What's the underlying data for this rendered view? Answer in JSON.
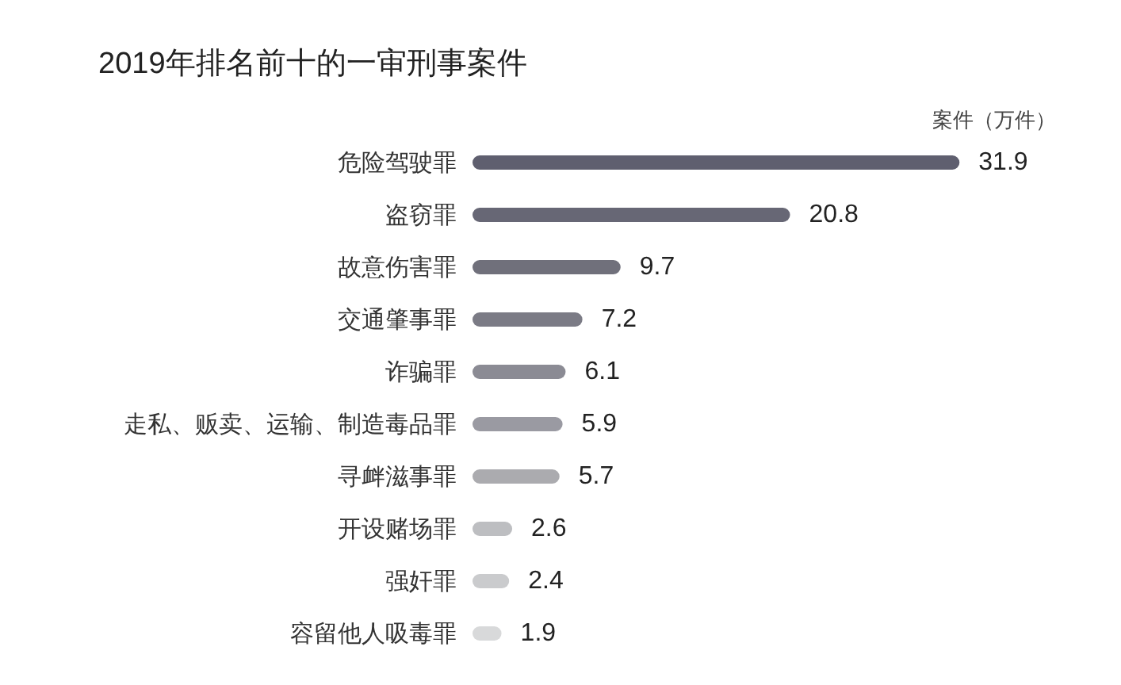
{
  "chart_data": {
    "type": "bar",
    "orientation": "horizontal",
    "title": "2019年排名前十的一审刑事案件",
    "xlabel": "案件（万件）",
    "categories": [
      "危险驾驶罪",
      "盗窃罪",
      "故意伤害罪",
      "交通肇事罪",
      "诈骗罪",
      "走私、贩卖、运输、制造毒品罪",
      "寻衅滋事罪",
      "开设赌场罪",
      "强奸罪",
      "容留他人吸毒罪"
    ],
    "values": [
      31.9,
      20.8,
      9.7,
      7.2,
      6.1,
      5.9,
      5.7,
      2.6,
      2.4,
      1.9
    ],
    "colors": [
      "#5f5f6f",
      "#676775",
      "#70707b",
      "#7b7b85",
      "#8b8b94",
      "#9a9aa2",
      "#ababaf",
      "#bdbec1",
      "#cacbcd",
      "#d8d9da"
    ],
    "data_labels": true
  }
}
